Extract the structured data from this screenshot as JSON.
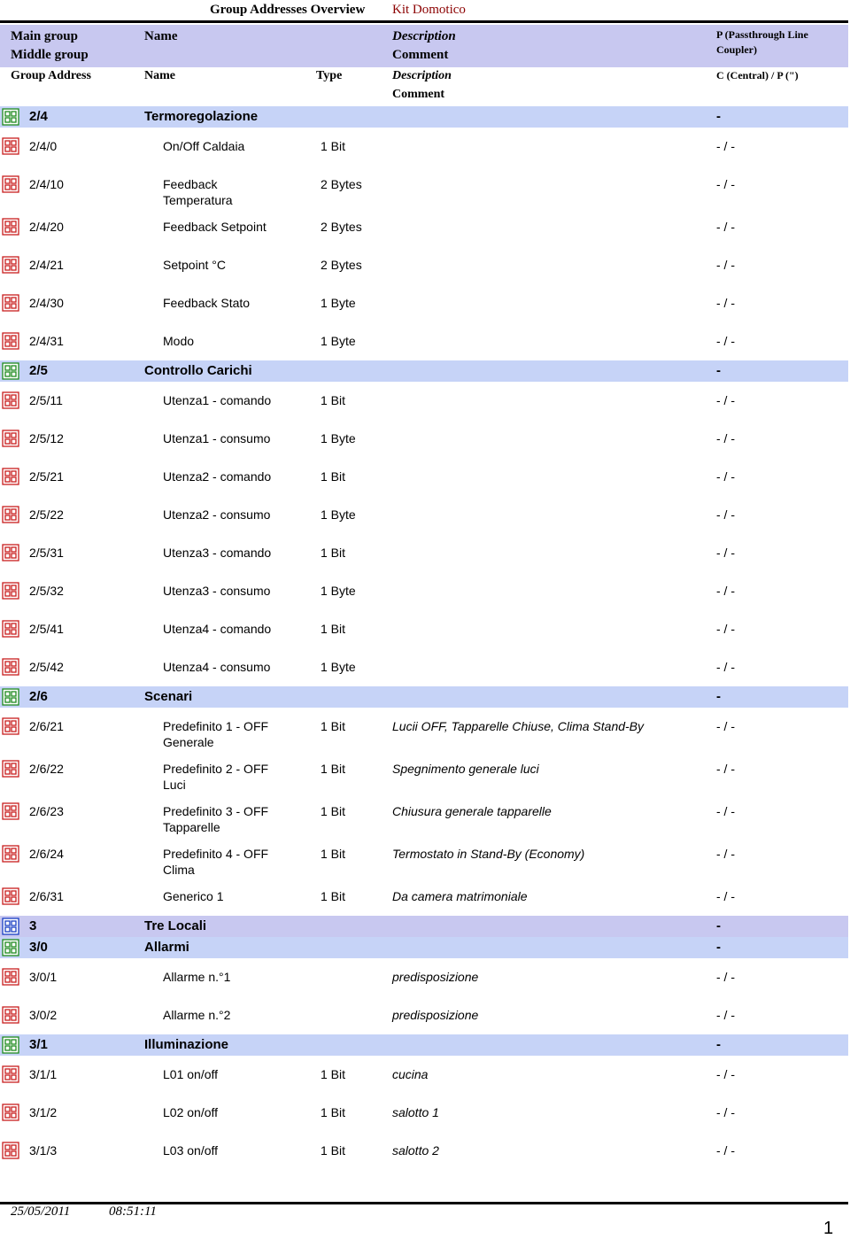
{
  "header": {
    "title": "Group Addresses Overview",
    "project": "Kit Domotico"
  },
  "columns": {
    "row1": {
      "main_group": "Main group",
      "middle_group": "Middle group",
      "name": "Name",
      "description": "Description",
      "comment": "Comment",
      "flag": "P (Passthrough Line Coupler)"
    },
    "row2": {
      "address": "Group Address",
      "name": "Name",
      "type": "Type",
      "description": "Description",
      "comment": "Comment",
      "flag": "C (Central) / P (\")"
    }
  },
  "rows": [
    {
      "address": "2/4",
      "name": "Termoregolazione",
      "flag": "-"
    },
    {
      "address": "2/4/0",
      "name": "On/Off Caldaia",
      "type": "1 Bit",
      "flag": "- / -"
    },
    {
      "address": "2/4/10",
      "name": "Feedback Temperatura",
      "type": "2 Bytes",
      "flag": "- / -"
    },
    {
      "address": "2/4/20",
      "name": "Feedback Setpoint",
      "type": "2 Bytes",
      "flag": "- / -"
    },
    {
      "address": "2/4/21",
      "name": "Setpoint °C",
      "type": "2 Bytes",
      "flag": "- / -"
    },
    {
      "address": "2/4/30",
      "name": "Feedback Stato",
      "type": "1 Byte",
      "flag": "- / -"
    },
    {
      "address": "2/4/31",
      "name": "Modo",
      "type": "1 Byte",
      "flag": "- / -"
    },
    {
      "address": "2/5",
      "name": "Controllo Carichi",
      "flag": "-"
    },
    {
      "address": "2/5/11",
      "name": "Utenza1 - comando",
      "type": "1 Bit",
      "flag": "- / -"
    },
    {
      "address": "2/5/12",
      "name": "Utenza1 - consumo",
      "type": "1 Byte",
      "flag": "- / -"
    },
    {
      "address": "2/5/21",
      "name": "Utenza2 - comando",
      "type": "1 Bit",
      "flag": "- / -"
    },
    {
      "address": "2/5/22",
      "name": "Utenza2 - consumo",
      "type": "1 Byte",
      "flag": "- / -"
    },
    {
      "address": "2/5/31",
      "name": "Utenza3 - comando",
      "type": "1 Bit",
      "flag": "- / -"
    },
    {
      "address": "2/5/32",
      "name": "Utenza3 - consumo",
      "type": "1 Byte",
      "flag": "- / -"
    },
    {
      "address": "2/5/41",
      "name": "Utenza4 - comando",
      "type": "1 Bit",
      "flag": "- / -"
    },
    {
      "address": "2/5/42",
      "name": "Utenza4 - consumo",
      "type": "1 Byte",
      "flag": "- / -"
    },
    {
      "address": "2/6",
      "name": "Scenari",
      "flag": "-"
    },
    {
      "address": "2/6/21",
      "name": "Predefinito 1 - OFF Generale",
      "type": "1 Bit",
      "description": "Lucii OFF, Tapparelle Chiuse, Clima Stand-By",
      "flag": "- / -"
    },
    {
      "address": "2/6/22",
      "name": "Predefinito 2 - OFF Luci",
      "type": "1 Bit",
      "description": "Spegnimento generale luci",
      "flag": "- / -"
    },
    {
      "address": "2/6/23",
      "name": "Predefinito 3 - OFF Tapparelle",
      "type": "1 Bit",
      "description": "Chiusura generale tapparelle",
      "flag": "- / -"
    },
    {
      "address": "2/6/24",
      "name": "Predefinito 4 - OFF Clima",
      "type": "1 Bit",
      "description": "Termostato in Stand-By (Economy)",
      "flag": "- / -"
    },
    {
      "address": "2/6/31",
      "name": "Generico 1",
      "type": "1 Bit",
      "description": "Da camera matrimoniale",
      "flag": "- / -"
    },
    {
      "address": "3",
      "name": "Tre Locali",
      "flag": "-"
    },
    {
      "address": "3/0",
      "name": "Allarmi",
      "flag": "-"
    },
    {
      "address": "3/0/1",
      "name": "Allarme n.°1",
      "description": "predisposizione",
      "flag": "- / -"
    },
    {
      "address": "3/0/2",
      "name": "Allarme n.°2",
      "description": "predisposizione",
      "flag": "- / -"
    },
    {
      "address": "3/1",
      "name": "Illuminazione",
      "flag": "-"
    },
    {
      "address": "3/1/1",
      "name": "L01 on/off",
      "type": "1 Bit",
      "description": "cucina",
      "flag": "- / -"
    },
    {
      "address": "3/1/2",
      "name": "L02 on/off",
      "type": "1 Bit",
      "description": "salotto 1",
      "flag": "- / -"
    },
    {
      "address": "3/1/3",
      "name": "L03 on/off",
      "type": "1 Bit",
      "description": "salotto 2",
      "flag": "- / -"
    }
  ],
  "footer": {
    "date": "25/05/2011",
    "time": "08:51:11",
    "page": "1"
  }
}
